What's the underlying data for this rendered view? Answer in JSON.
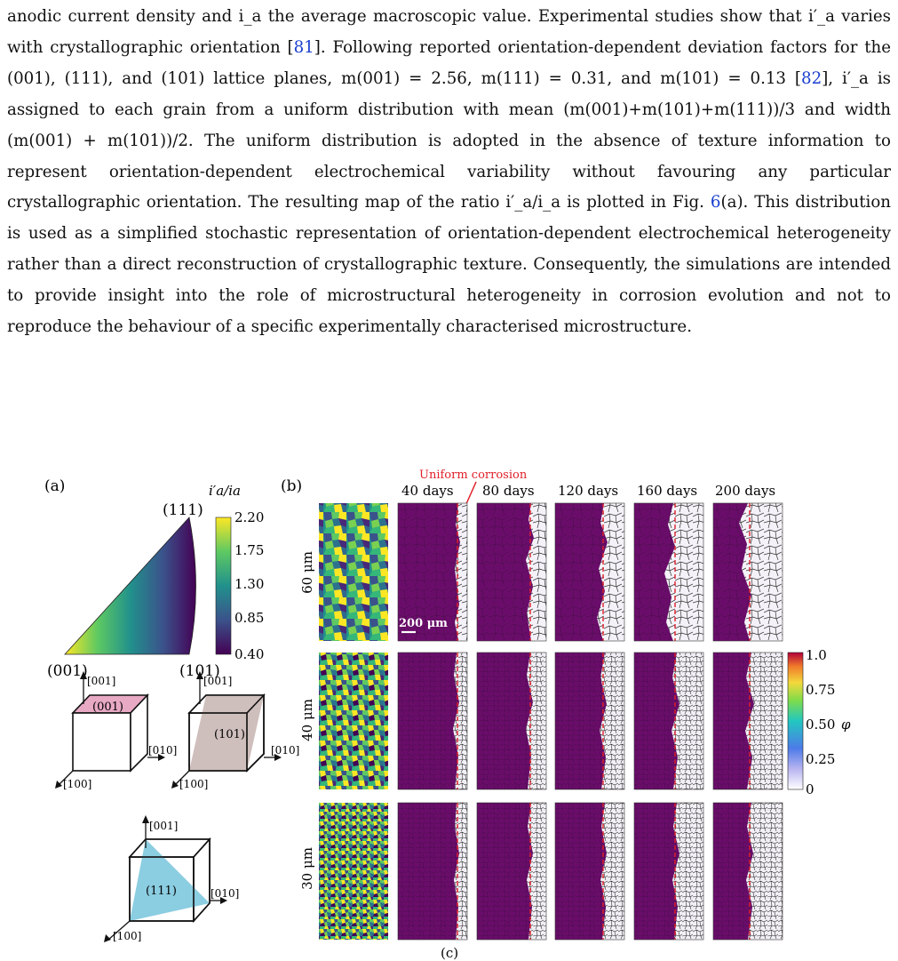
{
  "paragraph": {
    "s1": "anodic current density and i_a the average macroscopic value. Experimental studies show that i′_a varies with crystallographic orientation [",
    "c81": "81",
    "s2": "]. Following reported orientation-dependent deviation factors for the (001), (111), and (101) lattice planes, m(001) = 2.56, m(111) = 0.31, and m(101) = 0.13 [",
    "c82": "82",
    "s3": "], i′_a is assigned to each grain from a uniform distribution with mean (m(001)+m(101)+m(111))/3 and width (m(001) + m(101))/2. The uniform distribution is adopted in the absence of texture information to represent orientation-dependent electrochemical variability without favouring any particular crystallographic orientation. The resulting map of the ratio i′_a/i_a is plotted in Fig. ",
    "c6": "6",
    "s4": "(a). This distribution is used as a simplified stochastic representation of orientation-dependent electrochemical heterogeneity rather than a direct reconstruction of crystallographic texture. Consequently, the simulations are intended to provide insight into the role of microstructural heterogeneity in corrosion evolution and not to reproduce the behaviour of a specific experimentally characterised microstructure."
  },
  "figure": {
    "panel_a_label": "(a)",
    "panel_b_label": "(b)",
    "triangle": {
      "vertex_001": "(001)",
      "vertex_101": "(101)",
      "vertex_111": "(111)",
      "colorbar_title": "i′a/ia",
      "colorbar_ticks": [
        "2.20",
        "1.75",
        "1.30",
        "0.85",
        "0.40"
      ]
    },
    "cubes": [
      {
        "plane": "(001)",
        "axis_z": "[001]",
        "axis_y": "[010]",
        "axis_x": "[100]",
        "face_color": "#e8a9c4"
      },
      {
        "plane": "(101)",
        "axis_z": "[001]",
        "axis_y": "[010]",
        "axis_x": "[100]",
        "face_color": "#c7b4b0"
      },
      {
        "plane": "(111)",
        "axis_z": "[001]",
        "axis_y": "[010]",
        "axis_x": "[100]",
        "face_color": "#7ec8de"
      }
    ],
    "annotation": "Uniform corrosion",
    "day_labels": [
      "40 days",
      "80 days",
      "120 days",
      "160 days",
      "200 days"
    ],
    "row_labels": [
      "60 μm",
      "40 μm",
      "30 μm"
    ],
    "scale_bar": "200 μm",
    "phi_colorbar": {
      "symbol": "φ",
      "ticks": [
        "1.0",
        "0.75",
        "0.50",
        "0.25",
        "0"
      ]
    },
    "caption_stub": "(c)",
    "colors": {
      "viridis_low": "#440154",
      "viridis_high": "#fde725",
      "corroded_fill": "#6a0d6a",
      "front_line": "#e0202a",
      "text_red": "#e0202a"
    }
  }
}
